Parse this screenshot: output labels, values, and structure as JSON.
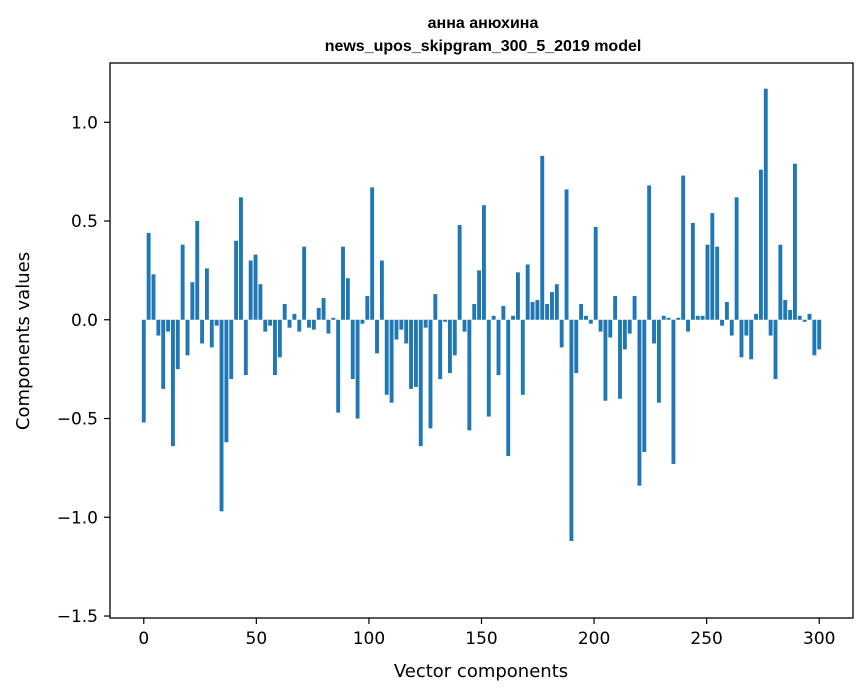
{
  "chart_data": {
    "type": "bar",
    "title_line1": "анна анюхина",
    "title_line2": "news_upos_skipgram_300_5_2019 model",
    "xlabel": "Vector components",
    "ylabel": "Components values",
    "xlim": [
      -15,
      315
    ],
    "ylim": [
      -1.51,
      1.3
    ],
    "xticks": [
      0,
      50,
      100,
      150,
      200,
      250,
      300
    ],
    "xtick_labels": [
      "0",
      "50",
      "100",
      "150",
      "200",
      "250",
      "300"
    ],
    "yticks": [
      1.0,
      0.5,
      0.0,
      -0.5,
      -1.0,
      -1.5
    ],
    "ytick_labels": [
      "1.0",
      "0.5",
      "0.0",
      "−0.5",
      "−1.0",
      "−1.5"
    ],
    "bar_color": "#1f77b4",
    "values": [
      -0.52,
      0.44,
      0.23,
      -0.08,
      -0.35,
      -0.06,
      -0.64,
      -0.25,
      0.38,
      -0.18,
      0.19,
      0.5,
      -0.12,
      0.26,
      -0.14,
      -0.03,
      -0.97,
      -0.62,
      -0.3,
      0.4,
      0.62,
      -0.28,
      0.3,
      0.33,
      0.18,
      -0.06,
      -0.03,
      -0.28,
      -0.19,
      0.08,
      -0.04,
      0.03,
      -0.06,
      0.37,
      -0.04,
      -0.05,
      0.06,
      0.11,
      -0.07,
      0.01,
      -0.47,
      0.37,
      0.21,
      -0.3,
      -0.5,
      -0.02,
      0.12,
      0.67,
      -0.17,
      0.3,
      -0.38,
      -0.42,
      -0.1,
      -0.05,
      -0.12,
      -0.35,
      -0.34,
      -0.64,
      -0.04,
      -0.55,
      0.13,
      -0.3,
      -0.01,
      -0.27,
      -0.18,
      0.48,
      -0.06,
      -0.56,
      0.08,
      0.25,
      0.58,
      -0.49,
      0.02,
      -0.28,
      0.07,
      -0.69,
      0.02,
      0.24,
      -0.38,
      0.28,
      0.09,
      0.1,
      0.83,
      0.08,
      0.14,
      0.18,
      -0.14,
      0.66,
      -1.12,
      -0.27,
      0.08,
      0.02,
      -0.02,
      0.47,
      -0.06,
      -0.41,
      -0.09,
      0.12,
      -0.4,
      -0.15,
      -0.07,
      0.12,
      -0.84,
      -0.67,
      0.68,
      -0.12,
      -0.42,
      0.02,
      0.01,
      -0.73,
      0.01,
      0.73,
      -0.06,
      0.49,
      0.02,
      0.02,
      0.38,
      0.54,
      0.37,
      -0.03,
      0.09,
      -0.08,
      0.62,
      -0.19,
      -0.08,
      -0.2,
      0.03,
      0.76,
      1.17,
      -0.08,
      -0.3,
      0.38,
      0.1,
      0.05,
      0.79,
      0.02,
      -0.01,
      0.03,
      -0.18,
      -0.15
    ]
  }
}
